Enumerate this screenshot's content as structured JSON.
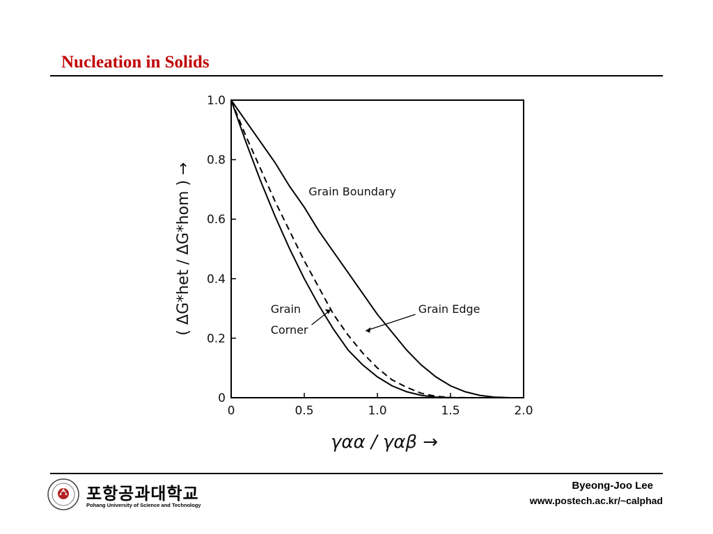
{
  "slide": {
    "title": "Nucleation in Solids"
  },
  "footer": {
    "university_korean": "포항공과대학교",
    "university_english": "Pohang University of Science and Technology",
    "emblem_year": "1986",
    "author": "Byeong-Joo Lee",
    "url": "www.postech.ac.kr/~calphad"
  },
  "colors": {
    "title": "#c00000",
    "emblem_red": "#b22222",
    "line": "#000000"
  },
  "chart_data": {
    "type": "line",
    "title": "",
    "xlabel": "γαα / γαβ →",
    "ylabel": "( ΔG*het / ΔG*hom ) →",
    "xlim": [
      0,
      2.0
    ],
    "ylim": [
      0,
      1.0
    ],
    "xticks": [
      "0",
      "0.5",
      "1.0",
      "1.5",
      "2.0"
    ],
    "yticks": [
      "0",
      "0.2",
      "0.4",
      "0.6",
      "0.8",
      "1.0"
    ],
    "grid": false,
    "series": [
      {
        "name": "Grain Boundary",
        "style": "solid",
        "points": [
          [
            0,
            1.0
          ],
          [
            0.1,
            0.93
          ],
          [
            0.2,
            0.86
          ],
          [
            0.3,
            0.79
          ],
          [
            0.4,
            0.71
          ],
          [
            0.5,
            0.64
          ],
          [
            0.6,
            0.56
          ],
          [
            0.7,
            0.49
          ],
          [
            0.8,
            0.42
          ],
          [
            0.9,
            0.35
          ],
          [
            1.0,
            0.28
          ],
          [
            1.1,
            0.22
          ],
          [
            1.2,
            0.16
          ],
          [
            1.3,
            0.11
          ],
          [
            1.4,
            0.07
          ],
          [
            1.5,
            0.04
          ],
          [
            1.6,
            0.02
          ],
          [
            1.7,
            0.008
          ],
          [
            1.8,
            0.002
          ],
          [
            1.9,
            0.0003
          ],
          [
            2.0,
            0
          ]
        ]
      },
      {
        "name": "Grain Edge",
        "style": "dashed",
        "points": [
          [
            0,
            1.0
          ],
          [
            0.1,
            0.88
          ],
          [
            0.2,
            0.77
          ],
          [
            0.3,
            0.66
          ],
          [
            0.4,
            0.56
          ],
          [
            0.5,
            0.46
          ],
          [
            0.6,
            0.37
          ],
          [
            0.7,
            0.28
          ],
          [
            0.8,
            0.21
          ],
          [
            0.9,
            0.15
          ],
          [
            1.0,
            0.1
          ],
          [
            1.1,
            0.06
          ],
          [
            1.2,
            0.035
          ],
          [
            1.3,
            0.015
          ],
          [
            1.4,
            0.005
          ],
          [
            1.5,
            0.001
          ],
          [
            1.6,
            0.0002
          ],
          [
            1.73,
            0
          ]
        ]
      },
      {
        "name": "Grain Corner",
        "style": "solid",
        "points": [
          [
            0,
            1.0
          ],
          [
            0.1,
            0.86
          ],
          [
            0.2,
            0.73
          ],
          [
            0.3,
            0.61
          ],
          [
            0.4,
            0.5
          ],
          [
            0.5,
            0.4
          ],
          [
            0.6,
            0.31
          ],
          [
            0.7,
            0.23
          ],
          [
            0.8,
            0.16
          ],
          [
            0.9,
            0.11
          ],
          [
            1.0,
            0.07
          ],
          [
            1.1,
            0.04
          ],
          [
            1.2,
            0.02
          ],
          [
            1.3,
            0.008
          ],
          [
            1.4,
            0.002
          ],
          [
            1.5,
            0.0003
          ],
          [
            1.55,
            0
          ]
        ]
      }
    ],
    "annotations": [
      {
        "text": "Grain Boundary",
        "series": "Grain Boundary"
      },
      {
        "text": "Grain Edge",
        "series": "Grain Edge"
      },
      {
        "text": "Grain",
        "series": "Grain Corner"
      },
      {
        "text": "Corner",
        "series": "Grain Corner"
      }
    ]
  }
}
